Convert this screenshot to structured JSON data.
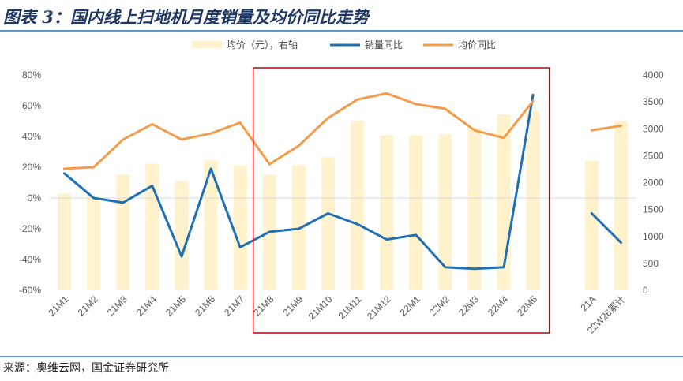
{
  "header": {
    "title": "图表 3：国内线上扫地机月度销量及均价同比走势"
  },
  "footer": {
    "source": "来源：奥维云网，国金证券研究所"
  },
  "chart_data": {
    "type": "bar+line",
    "categories": [
      "21M1",
      "21M2",
      "21M3",
      "21M4",
      "21M5",
      "21M6",
      "21M7",
      "21M8",
      "21M9",
      "21M10",
      "21M11",
      "21M12",
      "22M1",
      "22M2",
      "22M3",
      "22M4",
      "22M5",
      "",
      "21A",
      "22W26累计"
    ],
    "left_axis": {
      "ticks": [
        "80%",
        "60%",
        "40%",
        "20%",
        "0%",
        "-20%",
        "-40%",
        "-60%"
      ],
      "ylim": [
        -0.6,
        0.8
      ]
    },
    "right_axis": {
      "ticks": [
        "4000",
        "3500",
        "3000",
        "2500",
        "2000",
        "1500",
        "1000",
        "500",
        "0"
      ],
      "ylim": [
        0,
        4000
      ]
    },
    "series": [
      {
        "name": "均价（元），右轴",
        "type": "bar",
        "axis": "right",
        "color": "#fff2cc",
        "values": [
          1800,
          1750,
          2150,
          2350,
          2030,
          2420,
          2320,
          2150,
          2320,
          2480,
          3150,
          2880,
          2880,
          2900,
          3020,
          3270,
          3330,
          null,
          2400,
          3150
        ]
      },
      {
        "name": "销量同比",
        "type": "line",
        "axis": "left",
        "color": "#1f6fb4",
        "values": [
          0.16,
          0.0,
          -0.03,
          0.08,
          -0.38,
          0.19,
          -0.32,
          -0.22,
          -0.2,
          -0.1,
          -0.17,
          -0.27,
          -0.24,
          -0.45,
          -0.46,
          -0.45,
          0.67,
          null,
          -0.1,
          -0.29
        ]
      },
      {
        "name": "均价同比",
        "type": "line",
        "axis": "left",
        "color": "#f39c4a",
        "values": [
          0.19,
          0.2,
          0.38,
          0.48,
          0.38,
          0.42,
          0.49,
          0.22,
          0.34,
          0.52,
          0.64,
          0.68,
          0.61,
          0.58,
          0.44,
          0.39,
          0.63,
          null,
          0.44,
          0.47
        ]
      }
    ],
    "grid": false,
    "legend": "top",
    "highlight": {
      "from": "21M8",
      "to": "22M5",
      "color": "#c00000"
    }
  }
}
